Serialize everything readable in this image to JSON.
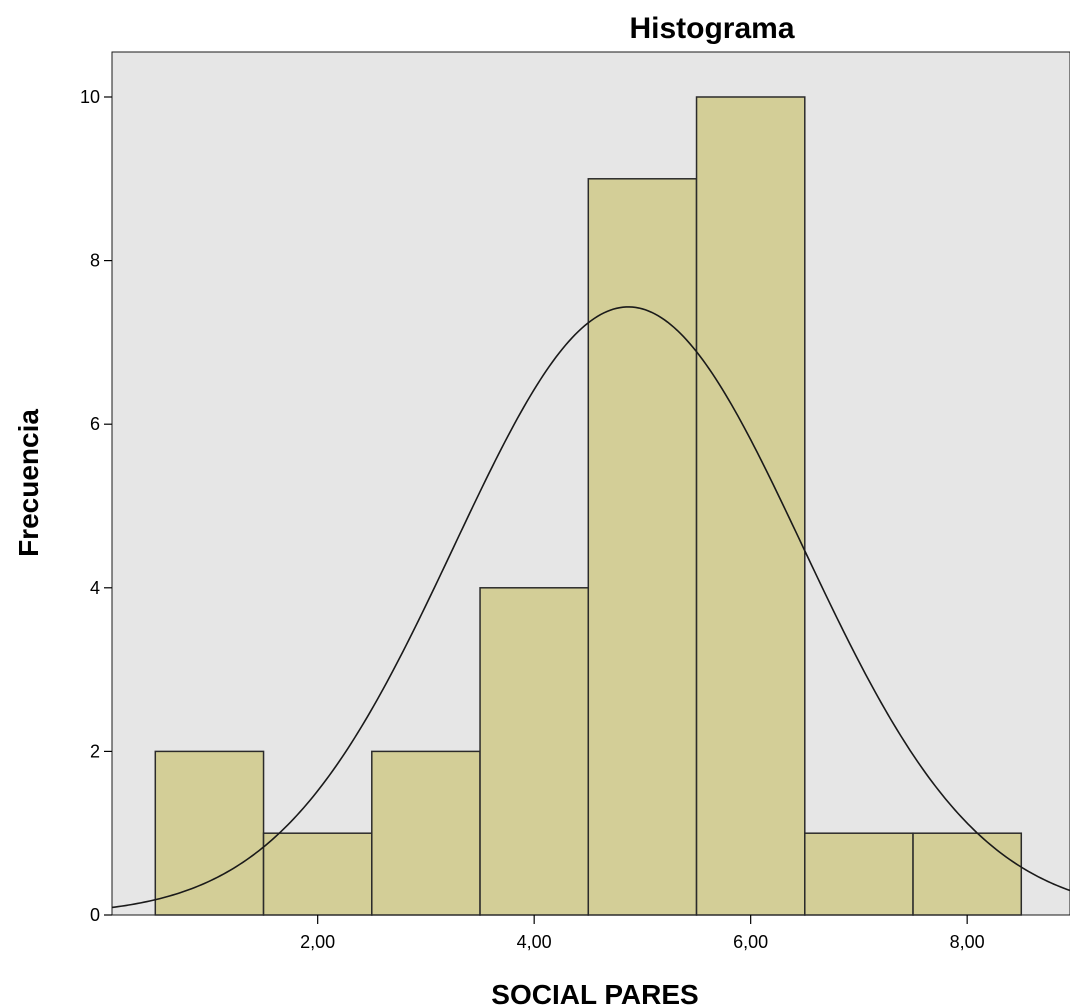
{
  "chart_data": {
    "type": "bar",
    "subtype": "histogram",
    "title": "Histograma",
    "xlabel": "SOCIAL PARES",
    "ylabel": "Frecuencia",
    "bin_width": 1,
    "bins": [
      {
        "center": 1,
        "count": 2
      },
      {
        "center": 2,
        "count": 1
      },
      {
        "center": 3,
        "count": 2
      },
      {
        "center": 4,
        "count": 4
      },
      {
        "center": 5,
        "count": 9
      },
      {
        "center": 6,
        "count": 10
      },
      {
        "center": 7,
        "count": 1
      },
      {
        "center": 8,
        "count": 1
      }
    ],
    "normal_curve": {
      "mean": 4.87,
      "sd": 1.61,
      "n": 30
    },
    "xlim": [
      0.1,
      8.95
    ],
    "ylim": [
      0,
      10.55
    ],
    "x_ticks": [
      2,
      4,
      6,
      8
    ],
    "x_tick_labels": [
      "2,00",
      "4,00",
      "6,00",
      "8,00"
    ],
    "y_ticks": [
      0,
      2,
      4,
      6,
      8,
      10
    ],
    "y_tick_labels": [
      "0",
      "2",
      "4",
      "6",
      "8",
      "10"
    ],
    "legend": "none",
    "grid": false,
    "colors": {
      "plot_background": "#e6e6e6",
      "bar_fill": "#d3ce97",
      "bar_stroke": "#2b2b2b",
      "curve": "#1a1a1a"
    }
  }
}
